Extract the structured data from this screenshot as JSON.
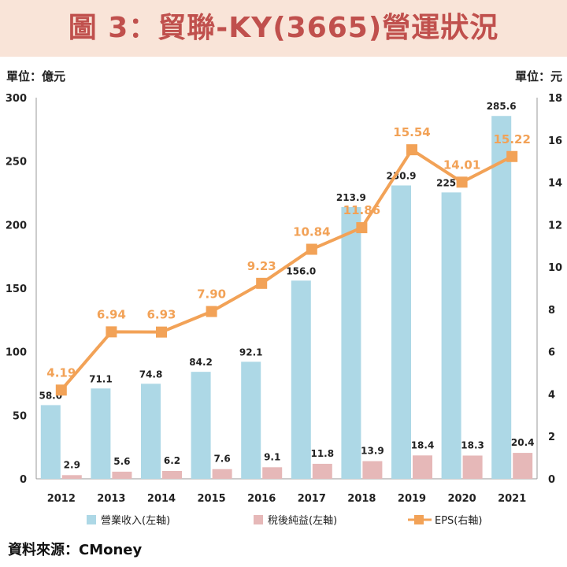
{
  "title": "圖 3：貿聯-KY(3665)營運狀況",
  "unit_left": "單位：億元",
  "unit_right": "單位：元",
  "source": "資料來源：CMoney",
  "colors": {
    "revenue": "#add8e6",
    "net_income": "#e6b8b8",
    "eps": "#f2a257",
    "title": "#c0504d",
    "title_band": "#f9e4d8"
  },
  "chart_data": {
    "type": "bar",
    "categories": [
      "2012",
      "2013",
      "2014",
      "2015",
      "2016",
      "2017",
      "2018",
      "2019",
      "2020",
      "2021"
    ],
    "series": [
      {
        "name": "營業收入(左軸)",
        "type": "bar",
        "axis": "left",
        "values": [
          58.0,
          71.1,
          74.8,
          84.2,
          92.1,
          156.0,
          213.9,
          230.9,
          225.4,
          285.6
        ],
        "labels": [
          "58.0",
          "71.1",
          "74.8",
          "84.2",
          "92.1",
          "156.0",
          "213.9",
          "230.9",
          "225.4",
          "285.6"
        ]
      },
      {
        "name": "稅後純益(左軸)",
        "type": "bar",
        "axis": "left",
        "values": [
          2.9,
          5.6,
          6.2,
          7.6,
          9.1,
          11.8,
          13.9,
          18.4,
          18.3,
          20.4
        ],
        "labels": [
          "2.9",
          "5.6",
          "6.2",
          "7.6",
          "9.1",
          "11.8",
          "13.9",
          "18.4",
          "18.3",
          "20.4"
        ]
      },
      {
        "name": "EPS(右軸)",
        "type": "line",
        "axis": "right",
        "values": [
          4.19,
          6.94,
          6.93,
          7.9,
          9.23,
          10.84,
          11.86,
          15.54,
          14.01,
          15.22
        ],
        "labels": [
          "4.19",
          "6.94",
          "6.93",
          "7.90",
          "9.23",
          "10.84",
          "11.86",
          "15.54",
          "14.01",
          "15.22"
        ]
      }
    ],
    "y_left": {
      "min": 0,
      "max": 300,
      "ticks": [
        "0",
        "50",
        "100",
        "150",
        "200",
        "250",
        "300"
      ]
    },
    "y_right": {
      "min": 0,
      "max": 18,
      "ticks": [
        "0",
        "2",
        "4",
        "6",
        "8",
        "10",
        "12",
        "14",
        "16",
        "18"
      ]
    },
    "grid": false,
    "legend": "bottom"
  }
}
